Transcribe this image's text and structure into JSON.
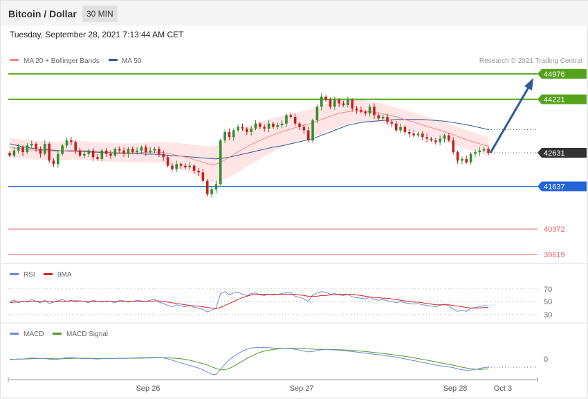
{
  "header": {
    "title": "Bitcoin / Dollar",
    "timeframe": "30 MIN"
  },
  "date_line": "Tuesday, September 28, 2021 7:13:44 AM CET",
  "colors": {
    "ma20": "#f28b8b",
    "ma50": "#2f5a96",
    "band": "#ffdede",
    "bull": "#2f8f2f",
    "bear": "#c81e1e",
    "resistance": "#54a21b",
    "support": "#2563d9",
    "target": "#e65b5b",
    "rsi": "#6a89d9",
    "rsi_ma": "#d62222",
    "macd": "#6a89d9",
    "macd_signal": "#4a9a2a",
    "arrow": "#2f5a96",
    "current": "#333333"
  },
  "legend": {
    "ma": "MA 20 + Bollinger Bands",
    "ma50": "MA 50",
    "rsi": "RSI",
    "rsi_ma": "9MA",
    "macd": "MACD",
    "macd_signal": "MACD Signal"
  },
  "credit": "Research © 2021 Trading Central",
  "rsi_ticks": [
    "70",
    "50",
    "30"
  ],
  "macd_tick": "0",
  "chart_data": {
    "type": "candlestick",
    "xlabels": [
      "Sep 26",
      "Sep 27",
      "Sep 28",
      "Oct 3"
    ],
    "ylim": [
      39450,
      45300
    ],
    "levels": [
      {
        "value": 44976,
        "label": "44976",
        "role": "resistance"
      },
      {
        "value": 44221,
        "label": "44221",
        "role": "resistance"
      },
      {
        "value": 42631,
        "label": "42631",
        "role": "current"
      },
      {
        "value": 41637,
        "label": "41637",
        "role": "support"
      },
      {
        "value": 40372,
        "label": "40372",
        "role": "target"
      },
      {
        "value": 39619,
        "label": "39619",
        "role": "target"
      }
    ],
    "forecast_target": 44976,
    "closes": [
      42550,
      42700,
      42800,
      42650,
      42850,
      42900,
      42750,
      42600,
      42900,
      42400,
      42300,
      42600,
      42850,
      43000,
      42950,
      42700,
      42550,
      42600,
      42700,
      42500,
      42450,
      42700,
      42600,
      42550,
      42750,
      42700,
      42600,
      42750,
      42650,
      42700,
      42800,
      42650,
      42700,
      42750,
      42600,
      42500,
      42250,
      42150,
      42300,
      42250,
      42200,
      42250,
      42100,
      42050,
      41800,
      41400,
      41550,
      41700,
      43000,
      43250,
      43100,
      43300,
      43400,
      43350,
      43250,
      43350,
      43500,
      43400,
      43350,
      43500,
      43400,
      43450,
      43500,
      43750,
      43700,
      43500,
      43400,
      43300,
      43000,
      43600,
      44000,
      44300,
      44200,
      44000,
      44200,
      44100,
      44050,
      44200,
      43950,
      43900,
      43850,
      43800,
      44000,
      43750,
      43650,
      43700,
      43550,
      43500,
      43300,
      43400,
      43250,
      43200,
      43150,
      43200,
      43100,
      43050,
      43000,
      42950,
      43050,
      43150,
      43000,
      42650,
      42400,
      42450,
      42350,
      42600,
      42650,
      42700,
      42750,
      42631
    ],
    "ma20": [
      42800,
      42780,
      42760,
      42740,
      42730,
      42720,
      42710,
      42700,
      42700,
      42690,
      42680,
      42680,
      42690,
      42700,
      42710,
      42710,
      42700,
      42700,
      42690,
      42680,
      42670,
      42660,
      42650,
      42650,
      42640,
      42640,
      42630,
      42630,
      42630,
      42630,
      42640,
      42640,
      42650,
      42650,
      42650,
      42640,
      42620,
      42590,
      42560,
      42530,
      42500,
      42470,
      42430,
      42390,
      42350,
      42310,
      42290,
      42300,
      42350,
      42420,
      42500,
      42580,
      42660,
      42740,
      42810,
      42880,
      42940,
      43000,
      43060,
      43110,
      43160,
      43210,
      43260,
      43300,
      43340,
      43380,
      43420,
      43450,
      43480,
      43520,
      43570,
      43620,
      43670,
      43720,
      43770,
      43800,
      43830,
      43850,
      43870,
      43880,
      43870,
      43860,
      43850,
      43840,
      43820,
      43790,
      43760,
      43730,
      43700,
      43660,
      43620,
      43580,
      43540,
      43500,
      43460,
      43420,
      43380,
      43340,
      43300,
      43260,
      43220,
      43170,
      43120,
      43070,
      43020,
      42980,
      42940,
      42900,
      42860,
      42830
    ],
    "ma50": [
      42900,
      42870,
      42840,
      42810,
      42790,
      42770,
      42750,
      42740,
      42730,
      42720,
      42710,
      42700,
      42690,
      42690,
      42680,
      42680,
      42670,
      42670,
      42660,
      42650,
      42650,
      42640,
      42640,
      42630,
      42630,
      42620,
      42620,
      42610,
      42610,
      42600,
      42600,
      42590,
      42590,
      42590,
      42580,
      42570,
      42560,
      42550,
      42540,
      42530,
      42520,
      42510,
      42500,
      42490,
      42480,
      42470,
      42460,
      42450,
      42460,
      42480,
      42500,
      42530,
      42560,
      42590,
      42620,
      42650,
      42680,
      42710,
      42740,
      42770,
      42800,
      42820,
      42840,
      42870,
      42900,
      42930,
      42960,
      42990,
      43020,
      43050,
      43100,
      43150,
      43200,
      43250,
      43300,
      43350,
      43400,
      43450,
      43480,
      43510,
      43530,
      43550,
      43560,
      43570,
      43580,
      43590,
      43600,
      43610,
      43620,
      43620,
      43620,
      43620,
      43620,
      43620,
      43620,
      43610,
      43600,
      43590,
      43580,
      43570,
      43550,
      43530,
      43510,
      43490,
      43470,
      43440,
      43410,
      43380,
      43350,
      43320
    ],
    "rsi": [
      50,
      52,
      48,
      51,
      49,
      53,
      50,
      48,
      52,
      47,
      49,
      51,
      53,
      50,
      52,
      49,
      51,
      50,
      48,
      52,
      50,
      49,
      51,
      50,
      48,
      52,
      51,
      49,
      50,
      52,
      51,
      50,
      52,
      53,
      49,
      47,
      44,
      42,
      45,
      43,
      42,
      44,
      41,
      40,
      38,
      34,
      37,
      40,
      62,
      65,
      60,
      63,
      64,
      61,
      59,
      62,
      63,
      60,
      59,
      61,
      60,
      61,
      62,
      64,
      63,
      58,
      56,
      54,
      50,
      60,
      63,
      65,
      64,
      61,
      62,
      60,
      59,
      61,
      57,
      56,
      55,
      54,
      57,
      53,
      52,
      53,
      51,
      50,
      48,
      50,
      48,
      47,
      46,
      47,
      45,
      44,
      43,
      42,
      44,
      46,
      43,
      38,
      35,
      37,
      35,
      40,
      41,
      42,
      44,
      43
    ],
    "rsi_ma": [
      48,
      49,
      49,
      50,
      50,
      50,
      50,
      50,
      50,
      50,
      49,
      50,
      50,
      50,
      51,
      51,
      51,
      50,
      50,
      50,
      50,
      50,
      50,
      50,
      50,
      50,
      50,
      50,
      50,
      50,
      50,
      50,
      50,
      51,
      51,
      50,
      49,
      48,
      47,
      46,
      45,
      44,
      43,
      43,
      42,
      41,
      40,
      39,
      41,
      44,
      47,
      50,
      53,
      56,
      58,
      60,
      61,
      61,
      61,
      61,
      61,
      61,
      61,
      61,
      61,
      61,
      60,
      59,
      58,
      58,
      58,
      59,
      59,
      60,
      60,
      61,
      61,
      61,
      61,
      60,
      59,
      58,
      57,
      56,
      56,
      55,
      55,
      54,
      53,
      52,
      51,
      50,
      49,
      49,
      48,
      47,
      46,
      45,
      45,
      45,
      45,
      44,
      43,
      42,
      41,
      40,
      40,
      40,
      41,
      41
    ],
    "macd": [
      -10,
      -5,
      0,
      -2,
      5,
      10,
      8,
      3,
      6,
      -3,
      -8,
      -5,
      5,
      15,
      18,
      12,
      5,
      3,
      6,
      2,
      -2,
      3,
      5,
      2,
      6,
      8,
      5,
      8,
      10,
      12,
      15,
      14,
      16,
      18,
      15,
      10,
      0,
      -15,
      -30,
      -45,
      -60,
      -75,
      -90,
      -105,
      -125,
      -150,
      -175,
      -180,
      -120,
      -60,
      -10,
      30,
      60,
      90,
      110,
      125,
      130,
      132,
      130,
      128,
      125,
      122,
      120,
      118,
      116,
      110,
      100,
      90,
      80,
      85,
      95,
      105,
      108,
      105,
      102,
      98,
      94,
      90,
      84,
      78,
      72,
      66,
      60,
      54,
      48,
      42,
      35,
      28,
      20,
      10,
      0,
      -10,
      -20,
      -30,
      -40,
      -50,
      -60,
      -70,
      -78,
      -85,
      -92,
      -100,
      -115,
      -125,
      -130,
      -128,
      -120,
      -110,
      -100,
      -95
    ],
    "macd_signal": [
      -5,
      -4,
      -3,
      -2,
      0,
      2,
      3,
      4,
      4,
      3,
      2,
      1,
      2,
      4,
      6,
      7,
      7,
      7,
      7,
      6,
      5,
      5,
      5,
      5,
      5,
      6,
      6,
      7,
      7,
      8,
      9,
      10,
      11,
      12,
      13,
      13,
      12,
      10,
      6,
      2,
      -6,
      -16,
      -28,
      -40,
      -55,
      -70,
      -90,
      -110,
      -125,
      -125,
      -110,
      -85,
      -55,
      -25,
      5,
      30,
      55,
      75,
      90,
      100,
      108,
      114,
      118,
      120,
      121,
      121,
      120,
      118,
      115,
      112,
      110,
      109,
      108,
      107,
      106,
      105,
      103,
      100,
      97,
      93,
      89,
      84,
      79,
      74,
      68,
      62,
      56,
      50,
      43,
      36,
      29,
      21,
      12,
      4,
      -5,
      -14,
      -24,
      -34,
      -44,
      -54,
      -64,
      -74,
      -84,
      -95,
      -105,
      -113,
      -118,
      -120,
      -118,
      -114
    ]
  }
}
